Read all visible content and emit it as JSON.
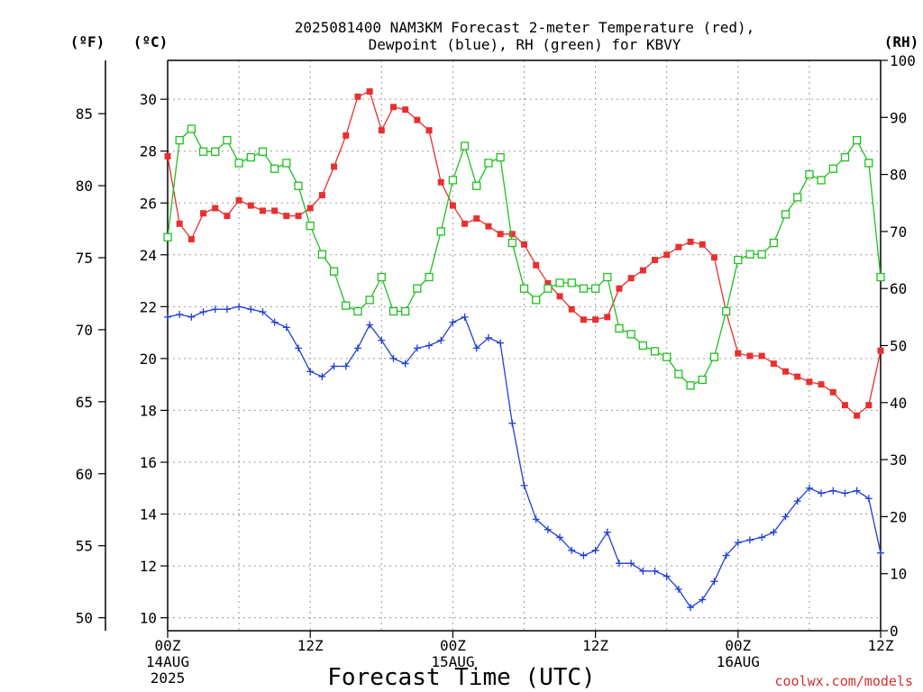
{
  "chart_data": {
    "type": "line",
    "title_line1": "2025081400 NAM3KM Forecast 2-meter Temperature (red),",
    "title_line2": "Dewpoint (blue), RH (green) for KBVY",
    "xlabel": "Forecast Time (UTC)",
    "credit": "coolwx.com/models",
    "unit_f": "(ºF)",
    "unit_c": "(ºC)",
    "unit_rh": "(RH)",
    "x_range_hours": [
      0,
      60
    ],
    "x_ticks": [
      {
        "hour": 0,
        "l1": "00Z",
        "l2": "14AUG",
        "l3": "2025"
      },
      {
        "hour": 12,
        "l1": "12Z",
        "l2": "",
        "l3": ""
      },
      {
        "hour": 24,
        "l1": "00Z",
        "l2": "15AUG",
        "l3": ""
      },
      {
        "hour": 36,
        "l1": "12Z",
        "l2": "",
        "l3": ""
      },
      {
        "hour": 48,
        "l1": "00Z",
        "l2": "16AUG",
        "l3": ""
      },
      {
        "hour": 60,
        "l1": "12Z",
        "l2": "",
        "l3": ""
      }
    ],
    "celsius_axis": {
      "range": [
        9.5,
        31.5
      ],
      "ticks": [
        "10",
        "12",
        "14",
        "16",
        "18",
        "20",
        "22",
        "24",
        "26",
        "28",
        "30"
      ]
    },
    "fahrenheit_axis": {
      "range": [
        49.1,
        88.7
      ],
      "ticks": [
        "50",
        "55",
        "60",
        "65",
        "70",
        "75",
        "80",
        "85"
      ]
    },
    "rh_axis": {
      "range": [
        0,
        100
      ],
      "ticks": [
        "0",
        "10",
        "20",
        "30",
        "40",
        "50",
        "60",
        "70",
        "80",
        "90",
        "100"
      ]
    },
    "hours": [
      0,
      1,
      2,
      3,
      4,
      5,
      6,
      7,
      8,
      9,
      10,
      11,
      12,
      13,
      14,
      15,
      16,
      17,
      18,
      19,
      20,
      21,
      22,
      23,
      24,
      25,
      26,
      27,
      28,
      29,
      30,
      31,
      32,
      33,
      34,
      35,
      36,
      37,
      38,
      39,
      40,
      41,
      42,
      43,
      44,
      45,
      46,
      47,
      48,
      49,
      50,
      51,
      52,
      53,
      54,
      55,
      56,
      57,
      58,
      59,
      60
    ],
    "series": [
      {
        "name": "2-meter Temperature (red)",
        "axis": "celsius",
        "color": "#e83030",
        "marker": "filled-square",
        "values": [
          27.8,
          25.2,
          24.6,
          25.6,
          25.8,
          25.5,
          26.1,
          25.9,
          25.7,
          25.7,
          25.5,
          25.5,
          25.8,
          26.3,
          27.4,
          28.6,
          30.1,
          30.3,
          28.8,
          29.7,
          29.6,
          29.2,
          28.8,
          26.8,
          25.9,
          25.2,
          25.4,
          25.1,
          24.8,
          24.8,
          24.4,
          23.6,
          22.9,
          22.4,
          21.9,
          21.5,
          21.5,
          21.6,
          22.7,
          23.1,
          23.4,
          23.8,
          24.0,
          24.3,
          24.5,
          24.4,
          23.9,
          21.8,
          20.2,
          20.1,
          20.1,
          19.8,
          19.5,
          19.3,
          19.1,
          19.0,
          18.7,
          18.2,
          17.8,
          18.2,
          20.3
        ]
      },
      {
        "name": "Dewpoint (blue)",
        "axis": "celsius",
        "color": "#2040d8",
        "marker": "plus",
        "values": [
          21.6,
          21.7,
          21.6,
          21.8,
          21.9,
          21.9,
          22.0,
          21.9,
          21.8,
          21.4,
          21.2,
          20.4,
          19.5,
          19.3,
          19.7,
          19.7,
          20.4,
          21.3,
          20.7,
          20.0,
          19.8,
          20.4,
          20.5,
          20.7,
          21.4,
          21.6,
          20.4,
          20.8,
          20.6,
          17.5,
          15.1,
          13.8,
          13.4,
          13.1,
          12.6,
          12.4,
          12.6,
          13.3,
          12.1,
          12.1,
          11.8,
          11.8,
          11.6,
          11.1,
          10.4,
          10.7,
          11.4,
          12.4,
          12.9,
          13.0,
          13.1,
          13.3,
          13.9,
          14.5,
          15.0,
          14.8,
          14.9,
          14.8,
          14.9,
          14.6,
          12.5
        ]
      },
      {
        "name": "RH (green)",
        "axis": "rh",
        "color": "#20c020",
        "marker": "open-square",
        "values": [
          69,
          86,
          88,
          84,
          84,
          86,
          82,
          83,
          84,
          81,
          82,
          78,
          71,
          66,
          63,
          57,
          56,
          58,
          62,
          56,
          56,
          60,
          62,
          70,
          79,
          85,
          78,
          82,
          83,
          68,
          60,
          58,
          60,
          61,
          61,
          60,
          60,
          62,
          53,
          52,
          50,
          49,
          48,
          45,
          43,
          44,
          48,
          56,
          65,
          66,
          66,
          68,
          73,
          76,
          80,
          79,
          81,
          83,
          86,
          82,
          62
        ]
      }
    ]
  }
}
